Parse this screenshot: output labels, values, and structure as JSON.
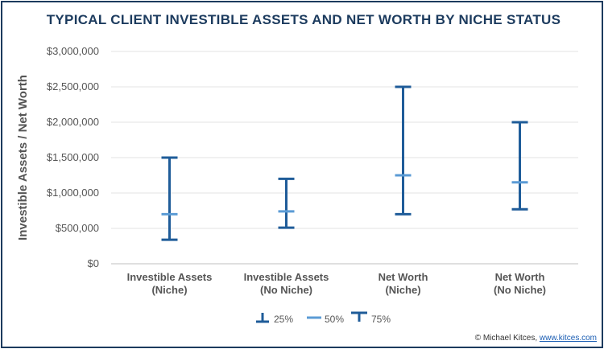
{
  "chart_data": {
    "type": "error-bar",
    "title": "TYPICAL CLIENT INVESTIBLE ASSETS AND NET WORTH BY NICHE STATUS",
    "xlabel": "",
    "ylabel": "Investible Assets / Net Worth",
    "ylim": [
      0,
      3000000
    ],
    "yticks": [
      "$0",
      "$500,000",
      "$1,000,000",
      "$1,500,000",
      "$2,000,000",
      "$2,500,000",
      "$3,000,000"
    ],
    "grid": true,
    "legend_position": "bottom",
    "categories": [
      [
        "Investible Assets",
        "(Niche)"
      ],
      [
        "Investible Assets",
        "(No Niche)"
      ],
      [
        "Net Worth",
        "(Niche)"
      ],
      [
        "Net Worth",
        "(No Niche)"
      ]
    ],
    "series": [
      {
        "name": "25%",
        "values": [
          340000,
          510000,
          700000,
          770000
        ]
      },
      {
        "name": "50%",
        "values": [
          700000,
          740000,
          1250000,
          1150000
        ]
      },
      {
        "name": "75%",
        "values": [
          1500000,
          1200000,
          2500000,
          2000000
        ]
      }
    ],
    "colors": {
      "range": "#1f5c99",
      "median": "#5b9bd5",
      "title": "#1c3b5e",
      "border": "#1c3b5e"
    }
  },
  "credit": {
    "prefix": "© Michael Kitces, ",
    "link": "www.kitces.com"
  }
}
